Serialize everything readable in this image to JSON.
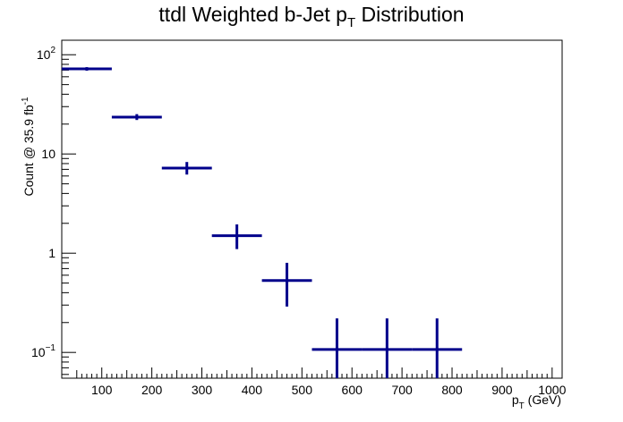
{
  "chart_data": {
    "type": "scatter",
    "title": "ttdl Weighted b-Jet p",
    "title_sub": "T",
    "title_tail": " Distribution",
    "xlabel": "p",
    "xlabel_sub": "T",
    "xlabel_tail": " (GeV)",
    "ylabel": "Count @ 35.9 fb",
    "ylabel_sup": "-1",
    "xlim": [
      20,
      1020
    ],
    "ylim": [
      0.055,
      140
    ],
    "yscale": "log",
    "grid": false,
    "x_tick_labels": [
      "100",
      "200",
      "300",
      "400",
      "500",
      "600",
      "700",
      "800",
      "900",
      "1000"
    ],
    "y_tick_labels": [
      {
        "value": 0.1,
        "base": "10",
        "exp": "−1"
      },
      {
        "value": 1,
        "base": "1",
        "exp": ""
      },
      {
        "value": 10,
        "base": "10",
        "exp": ""
      },
      {
        "value": 100,
        "base": "10",
        "exp": "2"
      }
    ],
    "series": [
      {
        "color": "#00008b",
        "points": [
          {
            "x": 70,
            "xerr": 50,
            "y": 72,
            "ylo": 69,
            "yhi": 75
          },
          {
            "x": 170,
            "xerr": 50,
            "y": 23.5,
            "ylo": 22,
            "yhi": 25.2
          },
          {
            "x": 270,
            "xerr": 50,
            "y": 7.2,
            "ylo": 6.2,
            "yhi": 8.3
          },
          {
            "x": 370,
            "xerr": 50,
            "y": 1.5,
            "ylo": 1.1,
            "yhi": 1.95
          },
          {
            "x": 470,
            "xerr": 50,
            "y": 0.53,
            "ylo": 0.29,
            "yhi": 0.8
          },
          {
            "x": 570,
            "xerr": 50,
            "y": 0.107,
            "ylo": 0.04,
            "yhi": 0.22
          },
          {
            "x": 670,
            "xerr": 50,
            "y": 0.107,
            "ylo": 0.04,
            "yhi": 0.22
          },
          {
            "x": 770,
            "xerr": 50,
            "y": 0.107,
            "ylo": 0.04,
            "yhi": 0.22
          }
        ]
      }
    ]
  }
}
